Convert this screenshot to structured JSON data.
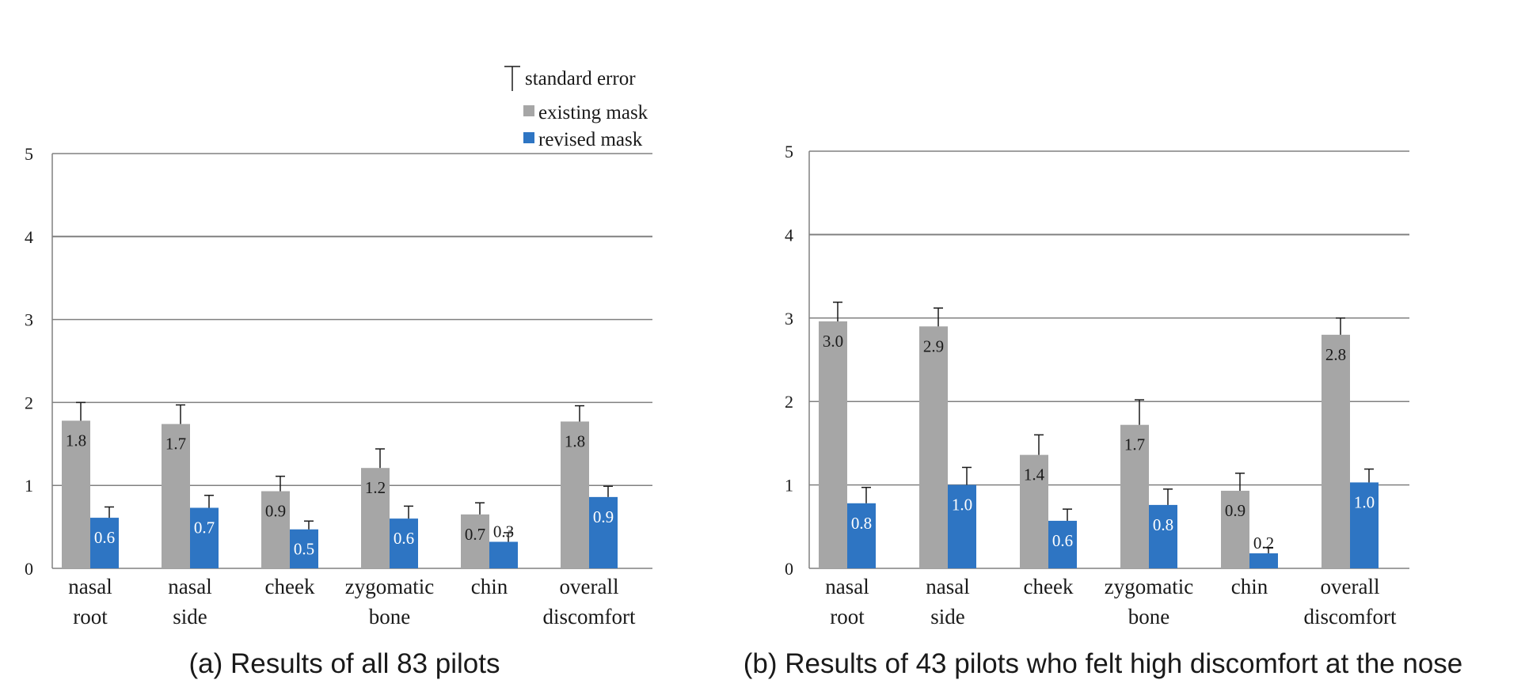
{
  "legend": {
    "error_label": "standard error",
    "series_labels": [
      "existing mask",
      "revised mask"
    ]
  },
  "colors": {
    "existing": "#a6a6a6",
    "revised": "#2e75c3",
    "grid": "#808080",
    "text": "#1a1a1a"
  },
  "chart_data": [
    {
      "type": "bar",
      "caption": "(a) Results of all 83 pilots",
      "categories": [
        [
          "nasal",
          "root"
        ],
        [
          "nasal",
          "side"
        ],
        [
          "cheek"
        ],
        [
          "zygomatic",
          "bone"
        ],
        [
          "chin"
        ],
        [
          "overall",
          "discomfort"
        ]
      ],
      "ylim": [
        0,
        5
      ],
      "yticks": [
        0,
        1,
        2,
        3,
        4,
        5
      ],
      "grid": true,
      "legend_position": "top-right",
      "series": [
        {
          "name": "existing mask",
          "values": [
            1.78,
            1.74,
            0.93,
            1.21,
            0.65,
            1.77
          ],
          "errors": [
            0.22,
            0.23,
            0.18,
            0.23,
            0.14,
            0.19
          ],
          "labels": [
            "1.8",
            "1.7",
            "0.9",
            "1.2",
            "0.7",
            "1.8"
          ]
        },
        {
          "name": "revised mask",
          "values": [
            0.61,
            0.73,
            0.47,
            0.6,
            0.32,
            0.86
          ],
          "errors": [
            0.13,
            0.15,
            0.1,
            0.15,
            0.11,
            0.13
          ],
          "labels": [
            "0.6",
            "0.7",
            "0.5",
            "0.6",
            "0.3",
            "0.9"
          ]
        }
      ]
    },
    {
      "type": "bar",
      "caption": "(b) Results of 43 pilots who felt high discomfort at the nose",
      "categories": [
        [
          "nasal",
          "root"
        ],
        [
          "nasal",
          "side"
        ],
        [
          "cheek"
        ],
        [
          "zygomatic",
          "bone"
        ],
        [
          "chin"
        ],
        [
          "overall",
          "discomfort"
        ]
      ],
      "ylim": [
        0,
        5
      ],
      "yticks": [
        0,
        1,
        2,
        3,
        4,
        5
      ],
      "grid": true,
      "series": [
        {
          "name": "existing mask",
          "values": [
            2.96,
            2.9,
            1.36,
            1.72,
            0.93,
            2.8
          ],
          "errors": [
            0.23,
            0.22,
            0.24,
            0.3,
            0.21,
            0.2
          ],
          "labels": [
            "3.0",
            "2.9",
            "1.4",
            "1.7",
            "0.9",
            "2.8"
          ]
        },
        {
          "name": "revised mask",
          "values": [
            0.78,
            1.0,
            0.57,
            0.76,
            0.18,
            1.03
          ],
          "errors": [
            0.19,
            0.21,
            0.14,
            0.19,
            0.07,
            0.16
          ],
          "labels": [
            "0.8",
            "1.0",
            "0.6",
            "0.8",
            "0.2",
            "1.0"
          ]
        }
      ]
    }
  ]
}
